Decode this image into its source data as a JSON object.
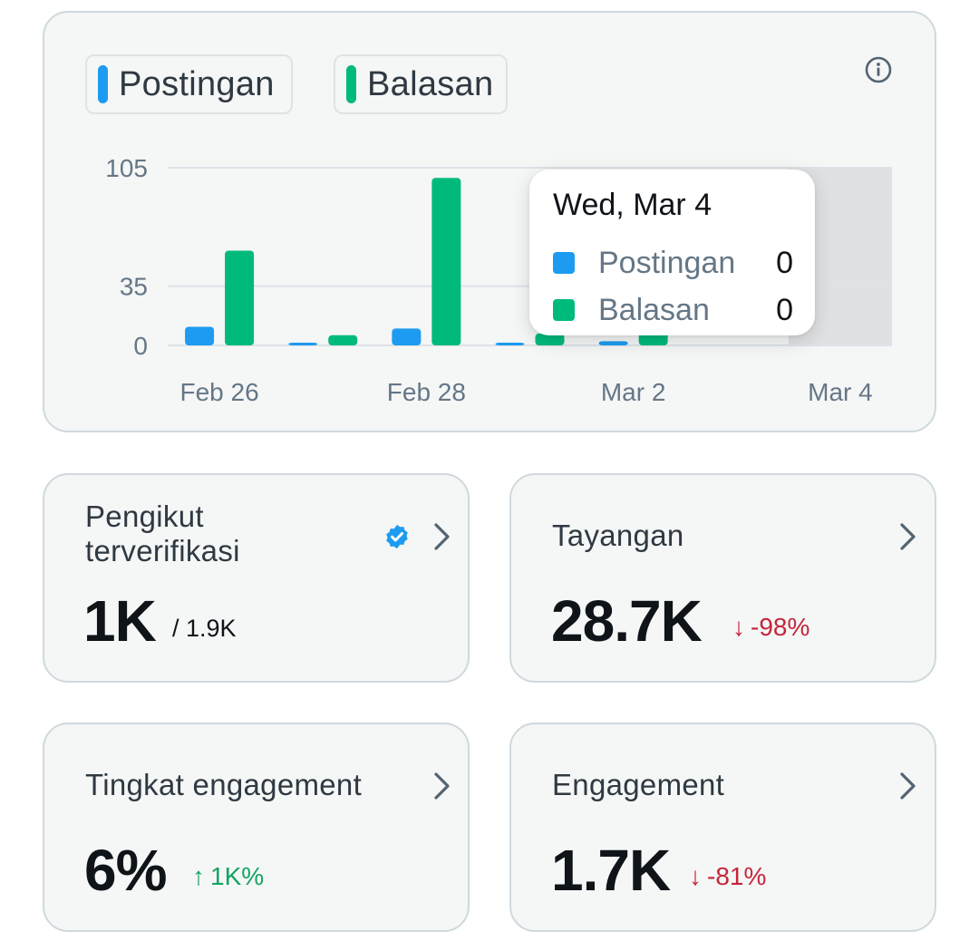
{
  "legend": {
    "posts_label": "Postingan",
    "replies_label": "Balasan",
    "posts_color": "#1d9bf0",
    "replies_color": "#00ba7c"
  },
  "info_icon": "info-icon",
  "chart_data": {
    "type": "bar",
    "categories": [
      "Feb 26",
      "Feb 27",
      "Feb 28",
      "Mar 1",
      "Mar 2",
      "Mar 3",
      "Mar 4"
    ],
    "series": [
      {
        "name": "Postingan",
        "values": [
          11,
          1,
          10,
          0.5,
          2.5,
          0,
          0
        ]
      },
      {
        "name": "Balasan",
        "values": [
          56,
          6,
          99,
          7,
          8,
          0,
          0
        ]
      }
    ],
    "y_ticks": [
      "105",
      "35",
      "0"
    ],
    "x_tick_labels": [
      "Feb 26",
      "Feb 28",
      "Mar 2",
      "Mar 4"
    ],
    "ylim": [
      0,
      105
    ],
    "highlighted_category": "Mar 4"
  },
  "tooltip": {
    "date": "Wed, Mar 4",
    "rows": [
      {
        "label": "Postingan",
        "value": "0"
      },
      {
        "label": "Balasan",
        "value": "0"
      }
    ]
  },
  "cards": {
    "verified_followers": {
      "title": "Pengikut terverifikasi",
      "value": "1K",
      "sub": "/ 1.9K",
      "badge_icon": "verified-badge-icon"
    },
    "impressions": {
      "title": "Tayangan",
      "value": "28.7K",
      "delta": "-98%",
      "delta_arrow": "↓",
      "delta_color": "#c4263a"
    },
    "engagement_rate": {
      "title": "Tingkat engagement",
      "value": "6%",
      "delta": "1K%",
      "delta_arrow": "↑",
      "delta_color": "#12a463"
    },
    "engagements": {
      "title": "Engagement",
      "value": "1.7K",
      "delta": "-81%",
      "delta_arrow": "↓",
      "delta_color": "#c4263a"
    }
  }
}
